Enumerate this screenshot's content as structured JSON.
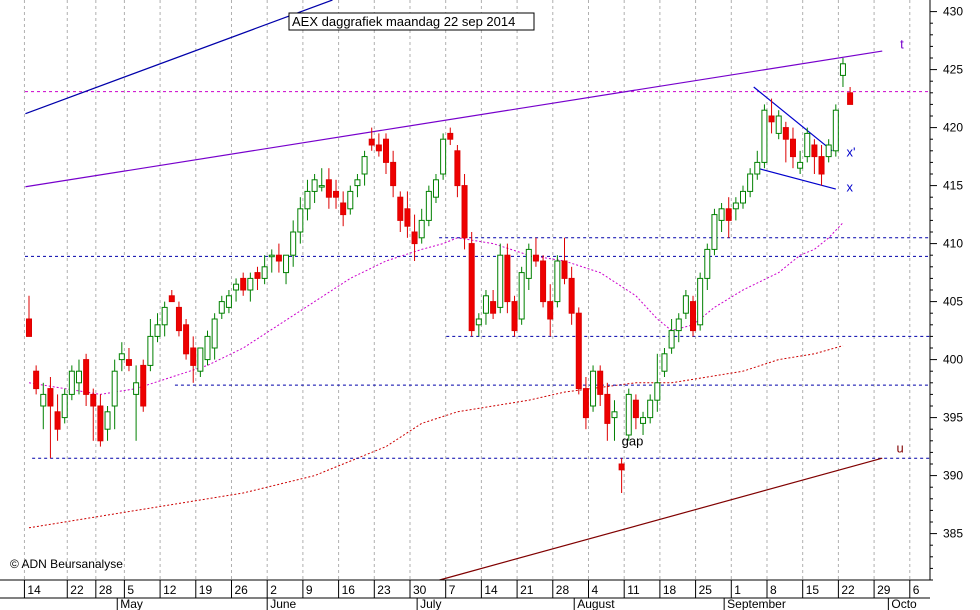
{
  "chart_data": {
    "type": "candlestick",
    "title": "AEX daggrafiek maandag 22 sep 2014",
    "copyright": "© ADN Beursanalyse",
    "ylim": [
      381,
      431
    ],
    "y_ticks": [
      385,
      390,
      395,
      400,
      405,
      410,
      415,
      420,
      425,
      430
    ],
    "x_day_ticks": [
      {
        "label": "14",
        "i": 0
      },
      {
        "label": "22",
        "i": 6
      },
      {
        "label": "28",
        "i": 10
      },
      {
        "label": "5",
        "i": 14
      },
      {
        "label": "12",
        "i": 19
      },
      {
        "label": "19",
        "i": 24
      },
      {
        "label": "26",
        "i": 29
      },
      {
        "label": "2",
        "i": 34
      },
      {
        "label": "9",
        "i": 39
      },
      {
        "label": "16",
        "i": 44
      },
      {
        "label": "23",
        "i": 49
      },
      {
        "label": "30",
        "i": 54
      },
      {
        "label": "7",
        "i": 59
      },
      {
        "label": "14",
        "i": 64
      },
      {
        "label": "21",
        "i": 69
      },
      {
        "label": "28",
        "i": 74
      },
      {
        "label": "4",
        "i": 79
      },
      {
        "label": "11",
        "i": 84
      },
      {
        "label": "18",
        "i": 89
      },
      {
        "label": "25",
        "i": 94
      },
      {
        "label": "1",
        "i": 99
      },
      {
        "label": "8",
        "i": 104
      },
      {
        "label": "15",
        "i": 109
      },
      {
        "label": "22",
        "i": 114
      },
      {
        "label": "29",
        "i": 119
      },
      {
        "label": "6",
        "i": 124
      }
    ],
    "x_month_labels": [
      {
        "label": "May",
        "i": 13
      },
      {
        "label": "June",
        "i": 34
      },
      {
        "label": "July",
        "i": 55
      },
      {
        "label": "August",
        "i": 77
      },
      {
        "label": "September",
        "i": 98
      },
      {
        "label": "Octo",
        "i": 121
      }
    ],
    "candles": [
      [
        403.5,
        405.5,
        402,
        402
      ],
      [
        399,
        399.5,
        397,
        397.5
      ],
      [
        396,
        398,
        394,
        397
      ],
      [
        397.5,
        398.5,
        391.5,
        396
      ],
      [
        395.5,
        397,
        393,
        394
      ],
      [
        395,
        397.5,
        394.5,
        397
      ],
      [
        397,
        399.5,
        396.5,
        399
      ],
      [
        398,
        400,
        397,
        399
      ],
      [
        400,
        400.5,
        396,
        397
      ],
      [
        397,
        397.5,
        393,
        396
      ],
      [
        396,
        397,
        392.5,
        393
      ],
      [
        394,
        396,
        393,
        395.5
      ],
      [
        396,
        400,
        394,
        399
      ],
      [
        400,
        401.5,
        399,
        400.5
      ],
      [
        400,
        401,
        399,
        399.5
      ],
      [
        397,
        399.5,
        393,
        398
      ],
      [
        399.5,
        400,
        395.5,
        396
      ],
      [
        399.5,
        403.5,
        399,
        402
      ],
      [
        402,
        404,
        401.5,
        403
      ],
      [
        403,
        405,
        402,
        404.5
      ],
      [
        405.5,
        406,
        405,
        405
      ],
      [
        404.5,
        405,
        402,
        402.5
      ],
      [
        403,
        403.5,
        400,
        400.5
      ],
      [
        401,
        402,
        398,
        399.5
      ],
      [
        399,
        401,
        398.5,
        401
      ],
      [
        400,
        402.5,
        399.5,
        402
      ],
      [
        401,
        404,
        400,
        403.5
      ],
      [
        404,
        405.5,
        403.5,
        405
      ],
      [
        404.5,
        406,
        404,
        405.5
      ],
      [
        406,
        407,
        405,
        406.5
      ],
      [
        407,
        407.5,
        405.5,
        406
      ],
      [
        406,
        407.5,
        405,
        407
      ],
      [
        407.5,
        408,
        406,
        407
      ],
      [
        407,
        409,
        406.5,
        408
      ],
      [
        409,
        409.5,
        407.5,
        409
      ],
      [
        409,
        410,
        407.5,
        408.5
      ],
      [
        407.5,
        409,
        406.5,
        409
      ],
      [
        409,
        412,
        408,
        411
      ],
      [
        411,
        414,
        410,
        413
      ],
      [
        413,
        415.5,
        412,
        414.5
      ],
      [
        414.5,
        416,
        413.5,
        415.5
      ],
      [
        415,
        416.5,
        414.5,
        415
      ],
      [
        415.5,
        416.5,
        413,
        414
      ],
      [
        414.5,
        415.5,
        413,
        414
      ],
      [
        413.5,
        414.5,
        411.5,
        412.5
      ],
      [
        413,
        415,
        412.5,
        414.5
      ],
      [
        415,
        416,
        414,
        415.5
      ],
      [
        416,
        418,
        415,
        417.5
      ],
      [
        419,
        420,
        418,
        418.5
      ],
      [
        418.5,
        419.5,
        417.5,
        418
      ],
      [
        419,
        419.5,
        416,
        417
      ],
      [
        417,
        418,
        414,
        415
      ],
      [
        414,
        414.5,
        411,
        412
      ],
      [
        413,
        414.5,
        410.5,
        411.5
      ],
      [
        411,
        412.5,
        408.5,
        410
      ],
      [
        410.5,
        413,
        410,
        412
      ],
      [
        412,
        415,
        411.5,
        414.5
      ],
      [
        414,
        416,
        413.5,
        415.5
      ],
      [
        416,
        419.5,
        415.5,
        419
      ],
      [
        419.5,
        420,
        418.5,
        419
      ],
      [
        418,
        418.5,
        414,
        415
      ],
      [
        415,
        416,
        409.5,
        410.5
      ],
      [
        410,
        411,
        402,
        402.5
      ],
      [
        403,
        404,
        402,
        403.5
      ],
      [
        404,
        406,
        403,
        405.5
      ],
      [
        405,
        406,
        403.5,
        404
      ],
      [
        404.5,
        410,
        404,
        409
      ],
      [
        409,
        410,
        404,
        405
      ],
      [
        405,
        405.5,
        402,
        402.5
      ],
      [
        403.5,
        408,
        403,
        407.5
      ],
      [
        407,
        410,
        406,
        409.5
      ],
      [
        409,
        410.5,
        408,
        408.5
      ],
      [
        408.5,
        409,
        404.5,
        405
      ],
      [
        405,
        406.5,
        402,
        403.5
      ],
      [
        405,
        409,
        404.5,
        408.5
      ],
      [
        408.5,
        410.5,
        406.5,
        407
      ],
      [
        407,
        408,
        403,
        404
      ],
      [
        404,
        404.5,
        397,
        397.5
      ],
      [
        397.5,
        398.5,
        394,
        395
      ],
      [
        396,
        399.5,
        395.5,
        399
      ],
      [
        399,
        399.5,
        396,
        397
      ],
      [
        397,
        398,
        393,
        394.5
      ],
      [
        395,
        396.5,
        393,
        395.5
      ],
      [
        391,
        391.5,
        388.5,
        390.5
      ],
      [
        393.5,
        397.5,
        393,
        397
      ],
      [
        396.5,
        397,
        394,
        395
      ],
      [
        394.5,
        395.5,
        393.5,
        395
      ],
      [
        395,
        397,
        394.5,
        396.5
      ],
      [
        396.5,
        400.5,
        395.5,
        398
      ],
      [
        399,
        401,
        398.5,
        400.5
      ],
      [
        401,
        403.5,
        400.5,
        402.5
      ],
      [
        402.5,
        404,
        401.5,
        403.5
      ],
      [
        404,
        406,
        403.5,
        405.5
      ],
      [
        405,
        405.5,
        402,
        402.5
      ],
      [
        403,
        407.5,
        402.5,
        407
      ],
      [
        407,
        410,
        406,
        409.5
      ],
      [
        409.5,
        413,
        409,
        412.5
      ],
      [
        412,
        413.5,
        411,
        413
      ],
      [
        413,
        414,
        410.5,
        412
      ],
      [
        413,
        414,
        412,
        413.5
      ],
      [
        413.5,
        415,
        413,
        414.5
      ],
      [
        414.5,
        416.5,
        414,
        416
      ],
      [
        416,
        418,
        415.5,
        417
      ],
      [
        417,
        422,
        416.5,
        421.5
      ],
      [
        421,
        422.5,
        419.5,
        420.5
      ],
      [
        419.5,
        421.5,
        419,
        421
      ],
      [
        420,
        420.5,
        417,
        419
      ],
      [
        419,
        420,
        416.5,
        417.5
      ],
      [
        416.5,
        418,
        416,
        417
      ],
      [
        417.5,
        420,
        417,
        419.5
      ],
      [
        418.5,
        419,
        416,
        417.5
      ],
      [
        417.5,
        418.5,
        415,
        416
      ],
      [
        417.5,
        419,
        417,
        418.5
      ],
      [
        418,
        422,
        417.5,
        421.5
      ],
      [
        424.5,
        426,
        423.5,
        425.5
      ],
      [
        423,
        423.5,
        422,
        422
      ]
    ],
    "extra_candles": [
      {
        "i": 66,
        "o": 402,
        "h": 403,
        "l": 401,
        "c": 402.5
      }
    ],
    "horizontal_lines": [
      {
        "value": 423.1,
        "color": "#cc00cc",
        "range": [
          0,
          125
        ]
      },
      {
        "value": 410.5,
        "color": "#0000aa",
        "range": [
          58,
          125
        ]
      },
      {
        "value": 408.9,
        "color": "#0000aa",
        "range": [
          0,
          125
        ]
      },
      {
        "value": 402.0,
        "color": "#0000aa",
        "range": [
          59,
          125
        ]
      },
      {
        "value": 397.8,
        "color": "#0000aa",
        "range": [
          21,
          125
        ]
      },
      {
        "value": 391.5,
        "color": "#0000aa",
        "range": [
          1,
          125
        ]
      }
    ],
    "trend_lines": [
      {
        "name": "t",
        "color": "#7700cc",
        "from": [
          -0.5,
          414.9
        ],
        "to": [
          119.5,
          426.6
        ],
        "label": "t",
        "label_at": [
          122,
          426.8
        ],
        "label_color": "#7700cc"
      },
      {
        "name": "outer-channel",
        "color": "#0000aa",
        "from": [
          -0.5,
          421.2
        ],
        "to": [
          42.5,
          431.0
        ]
      },
      {
        "name": "u",
        "color": "#800000",
        "from": [
          57.5,
          381.0
        ],
        "to": [
          119.5,
          391.5
        ],
        "label": "u",
        "label_at": [
          121.5,
          392
        ],
        "label_color": "#800000"
      },
      {
        "name": "x'",
        "color": "#0000cc",
        "from": [
          101.5,
          423.5
        ],
        "to": [
          112.5,
          418.0
        ],
        "label": "x'",
        "label_at": [
          114.5,
          417.5
        ],
        "label_color": "#0000cc"
      },
      {
        "name": "x",
        "color": "#0000cc",
        "from": [
          102,
          416.5
        ],
        "to": [
          113,
          414.7
        ],
        "label": "x",
        "label_at": [
          114.5,
          414.5
        ],
        "label_color": "#0000cc"
      }
    ],
    "moving_averages": [
      {
        "name": "ma-short",
        "color": "#cc00cc",
        "points": [
          [
            0,
            398
          ],
          [
            5,
            397.5
          ],
          [
            10,
            397
          ],
          [
            15,
            397.5
          ],
          [
            20,
            398.5
          ],
          [
            25,
            399.5
          ],
          [
            30,
            401
          ],
          [
            35,
            403
          ],
          [
            40,
            405
          ],
          [
            45,
            407
          ],
          [
            50,
            408.5
          ],
          [
            55,
            409.5
          ],
          [
            58,
            410
          ],
          [
            60,
            410.5
          ],
          [
            65,
            410
          ],
          [
            70,
            409
          ],
          [
            75,
            408.5
          ],
          [
            80,
            407.5
          ],
          [
            85,
            405.5
          ],
          [
            88,
            403.5
          ],
          [
            90,
            402.5
          ],
          [
            93,
            403
          ],
          [
            96,
            404.5
          ],
          [
            100,
            406
          ],
          [
            105,
            407.5
          ],
          [
            108,
            409
          ],
          [
            110,
            409.5
          ],
          [
            112,
            410.5
          ],
          [
            114,
            411.8
          ]
        ]
      },
      {
        "name": "ma-long",
        "color": "#cc0000",
        "points": [
          [
            0,
            385.5
          ],
          [
            10,
            386.5
          ],
          [
            20,
            387.5
          ],
          [
            30,
            388.5
          ],
          [
            40,
            390
          ],
          [
            50,
            392.5
          ],
          [
            55,
            394.5
          ],
          [
            60,
            395.5
          ],
          [
            65,
            396
          ],
          [
            70,
            396.5
          ],
          [
            75,
            397.2
          ],
          [
            80,
            397.6
          ],
          [
            85,
            398
          ],
          [
            90,
            398
          ],
          [
            95,
            398.5
          ],
          [
            100,
            399
          ],
          [
            105,
            400
          ],
          [
            110,
            400.5
          ],
          [
            114,
            401.2
          ]
        ]
      }
    ],
    "annotations": [
      {
        "text": "gap",
        "at": [
          83,
          392.6
        ]
      }
    ]
  }
}
